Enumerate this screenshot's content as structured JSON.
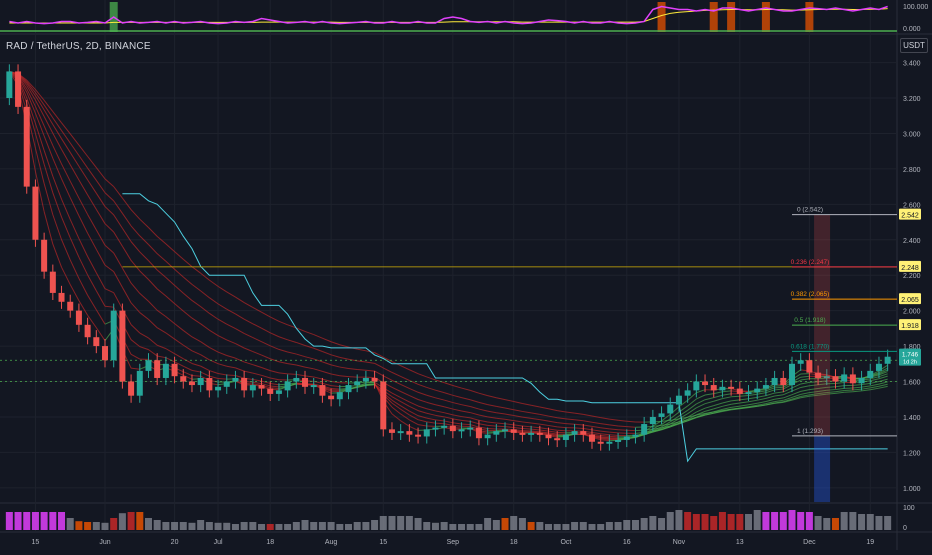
{
  "header": {
    "symbol": "RAD / TetherUS, 2D, BINANCE",
    "currency": "USDT"
  },
  "colors": {
    "background": "#131722",
    "grid": "#1e222d",
    "up": "#26a69a",
    "down": "#ef5350",
    "ribbon_down": "#c62828",
    "ribbon_up": "#4caf50",
    "baseline": "#4dd0e1",
    "oscillator": "#e040fb",
    "signal": "#ffeb3b",
    "fib_zero": "#b2b5be",
    "fib_0236": "#f23645",
    "fib_0382": "#ff9800",
    "fib_05": "#4caf50",
    "fib_0618": "#089981",
    "fib_1": "#b2b5be",
    "label_bg": "#fff176",
    "current_bg": "#26a69a"
  },
  "chart_data": {
    "type": "line",
    "x_axis": {
      "tick_labels": [
        "15",
        "Jun",
        "20",
        "Jul",
        "18",
        "Aug",
        "15",
        "Sep",
        "18",
        "Oct",
        "16",
        "Nov",
        "13",
        "Dec",
        "19"
      ],
      "tick_indices": [
        3,
        11,
        19,
        24,
        30,
        37,
        43,
        51,
        58,
        64,
        71,
        77,
        84,
        92,
        99
      ]
    },
    "y_axis": {
      "ylim": [
        0.92,
        3.55
      ],
      "tick_labels": [
        "3.400",
        "3.200",
        "3.000",
        "2.800",
        "2.600",
        "2.400",
        "2.200",
        "2.000",
        "1.800",
        "1.600",
        "1.400",
        "1.200",
        "1.000"
      ],
      "tick_values": [
        3.4,
        3.2,
        3.0,
        2.8,
        2.6,
        2.4,
        2.2,
        2.0,
        1.8,
        1.6,
        1.4,
        1.2,
        1.0
      ]
    },
    "candles_close": [
      3.35,
      3.15,
      2.7,
      2.4,
      2.22,
      2.1,
      2.05,
      2.0,
      1.92,
      1.85,
      1.8,
      1.72,
      2.0,
      1.6,
      1.52,
      1.66,
      1.72,
      1.62,
      1.7,
      1.63,
      1.6,
      1.58,
      1.62,
      1.55,
      1.57,
      1.6,
      1.62,
      1.55,
      1.58,
      1.56,
      1.53,
      1.55,
      1.6,
      1.62,
      1.57,
      1.58,
      1.52,
      1.5,
      1.54,
      1.58,
      1.6,
      1.62,
      1.6,
      1.33,
      1.31,
      1.32,
      1.3,
      1.29,
      1.33,
      1.34,
      1.35,
      1.32,
      1.33,
      1.34,
      1.28,
      1.3,
      1.32,
      1.33,
      1.31,
      1.3,
      1.31,
      1.3,
      1.28,
      1.27,
      1.3,
      1.32,
      1.3,
      1.26,
      1.25,
      1.26,
      1.27,
      1.29,
      1.3,
      1.36,
      1.4,
      1.42,
      1.47,
      1.52,
      1.55,
      1.6,
      1.58,
      1.55,
      1.57,
      1.56,
      1.53,
      1.54,
      1.56,
      1.58,
      1.62,
      1.58,
      1.7,
      1.72,
      1.65,
      1.62,
      1.63,
      1.6,
      1.64,
      1.59,
      1.62,
      1.66,
      1.7,
      1.74
    ],
    "candles_open": [
      3.2,
      3.35,
      3.15,
      2.7,
      2.4,
      2.22,
      2.1,
      2.05,
      2.0,
      1.92,
      1.85,
      1.8,
      1.72,
      2.0,
      1.6,
      1.52,
      1.66,
      1.72,
      1.62,
      1.7,
      1.63,
      1.6,
      1.58,
      1.62,
      1.55,
      1.57,
      1.6,
      1.62,
      1.55,
      1.58,
      1.56,
      1.53,
      1.55,
      1.6,
      1.62,
      1.57,
      1.58,
      1.52,
      1.5,
      1.54,
      1.58,
      1.6,
      1.62,
      1.6,
      1.33,
      1.31,
      1.32,
      1.3,
      1.29,
      1.33,
      1.34,
      1.35,
      1.32,
      1.33,
      1.34,
      1.28,
      1.3,
      1.32,
      1.33,
      1.31,
      1.3,
      1.31,
      1.3,
      1.28,
      1.27,
      1.3,
      1.32,
      1.3,
      1.26,
      1.25,
      1.26,
      1.27,
      1.29,
      1.3,
      1.36,
      1.4,
      1.42,
      1.47,
      1.52,
      1.55,
      1.6,
      1.58,
      1.55,
      1.57,
      1.56,
      1.53,
      1.54,
      1.56,
      1.58,
      1.62,
      1.58,
      1.7,
      1.72,
      1.65,
      1.62,
      1.63,
      1.6,
      1.64,
      1.59,
      1.62,
      1.66,
      1.7
    ],
    "baseline": [
      null,
      null,
      null,
      null,
      null,
      null,
      null,
      null,
      null,
      null,
      null,
      null,
      null,
      2.66,
      2.66,
      2.66,
      2.62,
      2.6,
      2.55,
      2.5,
      2.42,
      2.35,
      2.25,
      2.2,
      2.2,
      2.2,
      2.2,
      2.2,
      2.1,
      2.03,
      2.03,
      2.03,
      1.98,
      1.9,
      1.84,
      1.8,
      1.8,
      1.79,
      1.79,
      1.79,
      1.79,
      1.79,
      1.75,
      1.73,
      1.7,
      1.7,
      1.7,
      1.7,
      1.7,
      1.62,
      1.62,
      1.62,
      1.62,
      1.62,
      1.62,
      1.62,
      1.62,
      1.62,
      1.62,
      1.62,
      1.59,
      1.54,
      1.5,
      1.5,
      1.49,
      1.49,
      1.49,
      1.48,
      1.48,
      1.48,
      1.48,
      1.48,
      1.48,
      1.48,
      1.48,
      1.48,
      1.48,
      1.48,
      1.15,
      1.22,
      1.22,
      1.22,
      1.22,
      1.22,
      1.22,
      1.22,
      1.22,
      1.22,
      1.22,
      1.22,
      1.22,
      1.22,
      1.22,
      1.22,
      1.22,
      1.22,
      1.22,
      1.22,
      1.22,
      1.22,
      1.22,
      1.22
    ],
    "volume": [
      0.45,
      0.45,
      0.45,
      0.45,
      0.45,
      0.45,
      0.45,
      0.3,
      0.22,
      0.2,
      0.2,
      0.18,
      0.3,
      0.42,
      0.45,
      0.45,
      0.3,
      0.25,
      0.2,
      0.2,
      0.2,
      0.18,
      0.25,
      0.2,
      0.18,
      0.18,
      0.15,
      0.2,
      0.2,
      0.15,
      0.15,
      0.15,
      0.15,
      0.2,
      0.25,
      0.2,
      0.2,
      0.2,
      0.15,
      0.15,
      0.2,
      0.2,
      0.25,
      0.35,
      0.35,
      0.35,
      0.35,
      0.3,
      0.2,
      0.18,
      0.2,
      0.15,
      0.15,
      0.15,
      0.15,
      0.3,
      0.25,
      0.3,
      0.35,
      0.3,
      0.2,
      0.2,
      0.15,
      0.15,
      0.15,
      0.2,
      0.2,
      0.15,
      0.15,
      0.2,
      0.2,
      0.25,
      0.25,
      0.3,
      0.35,
      0.3,
      0.45,
      0.5,
      0.45,
      0.4,
      0.4,
      0.35,
      0.45,
      0.4,
      0.4,
      0.4,
      0.5,
      0.45,
      0.45,
      0.45,
      0.5,
      0.45,
      0.45,
      0.35,
      0.3,
      0.3,
      0.45,
      0.45,
      0.4,
      0.4,
      0.35,
      0.35
    ],
    "fibonacci": [
      {
        "label": "0 (2.542)",
        "value": 2.542,
        "axis_label": "2.542"
      },
      {
        "label": "0.236 (2.247)",
        "value": 2.247,
        "axis_label": "2.248"
      },
      {
        "label": "0.382 (2.065)",
        "value": 2.065,
        "axis_label": "2.065"
      },
      {
        "label": "0.5 (1.918)",
        "value": 1.918,
        "axis_label": "1.918"
      },
      {
        "label": "0.618 (1.770)",
        "value": 1.77,
        "axis_label": ""
      },
      {
        "label": "1 (1.293)",
        "value": 1.293,
        "axis_label": ""
      }
    ],
    "current_price": {
      "value": "1.746",
      "timer": "1d 2h",
      "y": 1.746
    },
    "dashed_levels": [
      1.72,
      1.6
    ],
    "oscillator": {
      "axis_labels": [
        "100.000",
        "0.000"
      ],
      "values": [
        0.35,
        0.3,
        0.35,
        0.3,
        0.28,
        0.3,
        0.35,
        0.35,
        0.3,
        0.32,
        0.35,
        0.3,
        0.5,
        0.3,
        0.35,
        0.3,
        0.32,
        0.35,
        0.3,
        0.35,
        0.3,
        0.32,
        0.35,
        0.3,
        0.28,
        0.3,
        0.35,
        0.32,
        0.35,
        0.45,
        0.4,
        0.35,
        0.3,
        0.32,
        0.35,
        0.3,
        0.35,
        0.3,
        0.28,
        0.3,
        0.32,
        0.35,
        0.3,
        0.3,
        0.35,
        0.3,
        0.3,
        0.35,
        0.3,
        0.3,
        0.45,
        0.5,
        0.45,
        0.35,
        0.32,
        0.35,
        0.3,
        0.35,
        0.3,
        0.28,
        0.3,
        0.35,
        0.4,
        0.38,
        0.35,
        0.3,
        0.35,
        0.3,
        0.3,
        0.35,
        0.3,
        0.28,
        0.3,
        0.35,
        0.75,
        0.85,
        0.8,
        0.75,
        0.75,
        0.7,
        0.75,
        0.7,
        0.8,
        0.8,
        0.75,
        0.7,
        0.75,
        0.8,
        0.75,
        0.7,
        0.7,
        0.75,
        0.8,
        0.78,
        0.75,
        0.8,
        0.75,
        0.7,
        0.75,
        0.8,
        0.75,
        0.85
      ],
      "signal": [
        0.3,
        0.3,
        0.3,
        0.3,
        0.3,
        0.3,
        0.3,
        0.3,
        0.3,
        0.3,
        0.3,
        0.3,
        0.32,
        0.32,
        0.32,
        0.32,
        0.32,
        0.32,
        0.32,
        0.32,
        0.32,
        0.32,
        0.32,
        0.32,
        0.32,
        0.32,
        0.32,
        0.32,
        0.32,
        0.33,
        0.33,
        0.33,
        0.33,
        0.33,
        0.33,
        0.33,
        0.33,
        0.33,
        0.32,
        0.32,
        0.32,
        0.32,
        0.32,
        0.32,
        0.32,
        0.32,
        0.32,
        0.32,
        0.32,
        0.32,
        0.33,
        0.34,
        0.34,
        0.34,
        0.34,
        0.34,
        0.34,
        0.34,
        0.34,
        0.33,
        0.33,
        0.33,
        0.33,
        0.33,
        0.33,
        0.33,
        0.33,
        0.33,
        0.33,
        0.33,
        0.33,
        0.33,
        0.33,
        0.35,
        0.45,
        0.55,
        0.62,
        0.66,
        0.68,
        0.7,
        0.72,
        0.73,
        0.74,
        0.75,
        0.75,
        0.74,
        0.74,
        0.75,
        0.75,
        0.74,
        0.73,
        0.73,
        0.74,
        0.75,
        0.75,
        0.76,
        0.76,
        0.75,
        0.75,
        0.76,
        0.76,
        0.78
      ]
    },
    "volume_axis_labels": [
      "100",
      "0"
    ]
  }
}
